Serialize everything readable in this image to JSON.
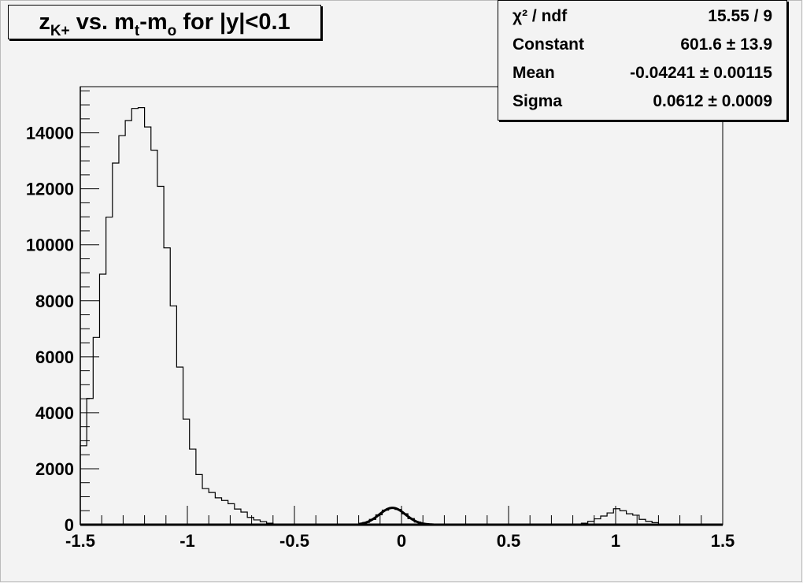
{
  "chart_data": {
    "type": "histogram",
    "title": {
      "main": "z",
      "sub1": "K+",
      "mid1": " vs. m",
      "sub2": "t",
      "mid2": "-m",
      "sub3": "o",
      "end": " for |y|<0.1"
    },
    "xlim": [
      -1.5,
      1.5
    ],
    "ylim": [
      0,
      15650
    ],
    "bin_width": 0.03,
    "x_ticks": [
      "-1.5",
      "-1",
      "-0.5",
      "0",
      "0.5",
      "1",
      "1.5"
    ],
    "x_tick_values": [
      -1.5,
      -1,
      -0.5,
      0,
      0.5,
      1,
      1.5
    ],
    "y_ticks": [
      "0",
      "2000",
      "4000",
      "6000",
      "8000",
      "10000",
      "12000",
      "14000"
    ],
    "y_tick_values": [
      0,
      2000,
      4000,
      6000,
      8000,
      10000,
      12000,
      14000
    ],
    "bin_contents": [
      2820,
      4510,
      6690,
      8950,
      10990,
      12920,
      13900,
      14440,
      14870,
      14900,
      14210,
      13380,
      12090,
      9890,
      7820,
      5630,
      3770,
      2700,
      1790,
      1290,
      1150,
      960,
      865,
      750,
      560,
      450,
      260,
      170,
      110,
      55,
      10,
      5,
      0,
      0,
      0,
      0,
      0,
      0,
      0,
      0,
      0,
      0,
      0,
      5,
      80,
      190,
      354,
      520,
      600,
      546,
      391,
      219,
      95,
      34,
      10,
      0,
      0,
      0,
      0,
      0,
      0,
      0,
      0,
      0,
      0,
      0,
      0,
      0,
      0,
      0,
      0,
      0,
      0,
      0,
      0,
      0,
      0,
      20,
      55,
      120,
      210,
      310,
      420,
      570,
      500,
      390,
      340,
      190,
      120,
      75,
      10,
      0,
      0,
      0,
      0,
      0,
      0,
      0,
      0,
      0
    ],
    "fit": {
      "function": "gaus",
      "constant": 601.6,
      "mean": -0.04241,
      "sigma": 0.0612,
      "range": [
        -0.2,
        0.15
      ],
      "color": "#000000"
    },
    "grid": false,
    "colors": {
      "background": "#f3f3f3",
      "line": "#000000"
    }
  },
  "stats": [
    {
      "label": "χ² / ndf",
      "value": "15.55 / 9"
    },
    {
      "label": "Constant",
      "value": "601.6 ± 13.9"
    },
    {
      "label": "Mean",
      "value": "-0.04241 ± 0.00115"
    },
    {
      "label": "Sigma",
      "value": "0.0612 ± 0.0009"
    }
  ]
}
